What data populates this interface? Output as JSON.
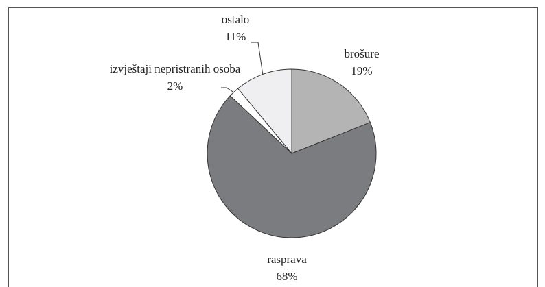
{
  "chart_data": {
    "type": "pie",
    "categories": [
      "brošure",
      "rasprava",
      "izvještaji nepristranih osoba",
      "ostalo"
    ],
    "values": [
      19,
      68,
      2,
      11
    ],
    "value_labels": [
      "19%",
      "68%",
      "2%",
      "11%"
    ],
    "colors": [
      "#b4b4b4",
      "#7b7c7f",
      "#ffffff",
      "#efeff1"
    ]
  }
}
